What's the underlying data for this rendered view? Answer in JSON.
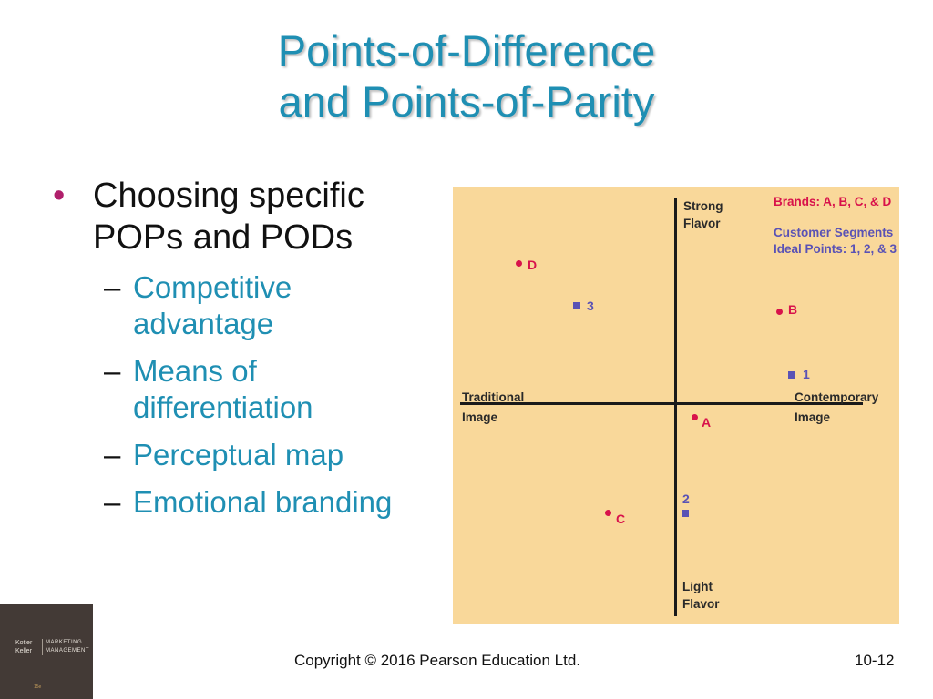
{
  "title": {
    "line1": "Points-of-Difference",
    "line2": "and Points-of-Parity"
  },
  "bullet": {
    "marker": "•",
    "text": "Choosing specific POPs and PODs"
  },
  "subbullets": [
    {
      "dash": "–",
      "text": "Competitive advantage"
    },
    {
      "dash": "–",
      "text": "Means of differentiation"
    },
    {
      "dash": "–",
      "text": "Perceptual map"
    },
    {
      "dash": "–",
      "text": "Emotional branding"
    }
  ],
  "map": {
    "axes": {
      "top_line1": "Strong",
      "top_line2": "Flavor",
      "bottom_line1": "Light",
      "bottom_line2": "Flavor",
      "left_line1": "Traditional",
      "left_line2": "Image",
      "right_line1": "Contemporary",
      "right_line2": "Image"
    },
    "legend": {
      "brands": "Brands: A, B, C, & D",
      "segments": "Customer Segments",
      "ideal": "Ideal Points: 1, 2, & 3"
    },
    "brands": {
      "A": "A",
      "B": "B",
      "C": "C",
      "D": "D"
    },
    "segments": {
      "s1": "1",
      "s2": "2",
      "s3": "3"
    },
    "colors": {
      "background": "#f9d89a",
      "brand": "#d8124b",
      "segment": "#5a52b5",
      "axis": "#1a1a1a"
    }
  },
  "logo": {
    "line1": "Kotler",
    "line2": "Keller",
    "line3": "MARKETING",
    "line4": "MANAGEMENT",
    "edition": "15e"
  },
  "footer": {
    "copyright": "Copyright © 2016 Pearson Education Ltd.",
    "slide_number": "10-12"
  },
  "theme": {
    "title_color": "#1f8fb3",
    "bullet_color": "#b01f6b",
    "sub_color": "#1f8fb3"
  }
}
